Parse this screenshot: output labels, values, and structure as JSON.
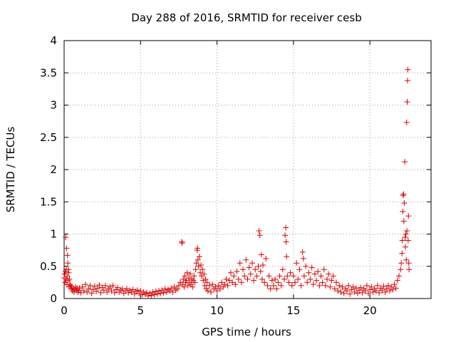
{
  "chart_data": {
    "type": "scatter",
    "title": "Day 288 of 2016, SRMTID for receiver cesb",
    "xlabel": "GPS time / hours",
    "ylabel": "SRMTID / TECUs",
    "xlim": [
      0,
      24
    ],
    "ylim": [
      0,
      4
    ],
    "xticks": [
      0,
      5,
      10,
      15,
      20
    ],
    "xtick_labels": [
      "0",
      "5",
      "10",
      "15",
      "20"
    ],
    "yticks": [
      0,
      0.5,
      1,
      1.5,
      2,
      2.5,
      3,
      3.5,
      4
    ],
    "ytick_labels": [
      "0",
      "0.5",
      "1",
      "1.5",
      "2",
      "2.5",
      "3",
      "3.5",
      "4"
    ],
    "grid": true,
    "marker": "+",
    "series": [
      {
        "name": "SRMTID",
        "color": "#dd0000",
        "points": [
          [
            0.0,
            0.32
          ],
          [
            0.04,
            0.38
          ],
          [
            0.06,
            0.25
          ],
          [
            0.08,
            0.42
          ],
          [
            0.1,
            0.95
          ],
          [
            0.12,
            0.3
          ],
          [
            0.14,
            0.45
          ],
          [
            0.16,
            0.78
          ],
          [
            0.18,
            0.22
          ],
          [
            0.2,
            0.35
          ],
          [
            0.22,
            0.67
          ],
          [
            0.24,
            0.55
          ],
          [
            0.26,
            0.28
          ],
          [
            0.28,
            0.45
          ],
          [
            0.3,
            0.4
          ],
          [
            0.32,
            0.18
          ],
          [
            0.35,
            0.3
          ],
          [
            0.38,
            0.22
          ],
          [
            0.42,
            0.2
          ],
          [
            0.46,
            0.15
          ],
          [
            0.5,
            0.18
          ],
          [
            0.55,
            0.12
          ],
          [
            0.6,
            0.16
          ],
          [
            0.65,
            0.1
          ],
          [
            0.7,
            0.14
          ],
          [
            0.75,
            0.18
          ],
          [
            0.8,
            0.12
          ],
          [
            0.85,
            0.16
          ],
          [
            0.9,
            0.1
          ],
          [
            0.95,
            0.13
          ],
          [
            1.0,
            0.16
          ],
          [
            1.1,
            0.09
          ],
          [
            1.2,
            0.18
          ],
          [
            1.3,
            0.12
          ],
          [
            1.4,
            0.22
          ],
          [
            1.5,
            0.1
          ],
          [
            1.6,
            0.15
          ],
          [
            1.7,
            0.2
          ],
          [
            1.8,
            0.08
          ],
          [
            1.9,
            0.14
          ],
          [
            2.0,
            0.19
          ],
          [
            2.1,
            0.11
          ],
          [
            2.2,
            0.16
          ],
          [
            2.3,
            0.21
          ],
          [
            2.4,
            0.09
          ],
          [
            2.5,
            0.17
          ],
          [
            2.6,
            0.13
          ],
          [
            2.7,
            0.2
          ],
          [
            2.8,
            0.1
          ],
          [
            2.9,
            0.15
          ],
          [
            3.0,
            0.18
          ],
          [
            3.1,
            0.12
          ],
          [
            3.2,
            0.2
          ],
          [
            3.3,
            0.09
          ],
          [
            3.4,
            0.14
          ],
          [
            3.5,
            0.17
          ],
          [
            3.6,
            0.1
          ],
          [
            3.7,
            0.13
          ],
          [
            3.8,
            0.15
          ],
          [
            3.9,
            0.08
          ],
          [
            4.0,
            0.12
          ],
          [
            4.1,
            0.15
          ],
          [
            4.2,
            0.09
          ],
          [
            4.3,
            0.13
          ],
          [
            4.4,
            0.1
          ],
          [
            4.5,
            0.14
          ],
          [
            4.6,
            0.07
          ],
          [
            4.7,
            0.11
          ],
          [
            4.8,
            0.13
          ],
          [
            4.9,
            0.08
          ],
          [
            5.0,
            0.12
          ],
          [
            5.1,
            0.06
          ],
          [
            5.2,
            0.1
          ],
          [
            5.3,
            0.07
          ],
          [
            5.4,
            0.09
          ],
          [
            5.5,
            0.04
          ],
          [
            5.6,
            0.08
          ],
          [
            5.7,
            0.05
          ],
          [
            5.8,
            0.1
          ],
          [
            5.9,
            0.06
          ],
          [
            6.0,
            0.11
          ],
          [
            6.1,
            0.07
          ],
          [
            6.2,
            0.12
          ],
          [
            6.3,
            0.08
          ],
          [
            6.4,
            0.13
          ],
          [
            6.5,
            0.09
          ],
          [
            6.6,
            0.15
          ],
          [
            6.7,
            0.1
          ],
          [
            6.8,
            0.14
          ],
          [
            6.9,
            0.12
          ],
          [
            7.0,
            0.16
          ],
          [
            7.1,
            0.1
          ],
          [
            7.2,
            0.18
          ],
          [
            7.3,
            0.13
          ],
          [
            7.4,
            0.15
          ],
          [
            7.5,
            0.2
          ],
          [
            7.6,
            0.25
          ],
          [
            7.7,
            0.88
          ],
          [
            7.72,
            0.86
          ],
          [
            7.75,
            0.22
          ],
          [
            7.8,
            0.3
          ],
          [
            7.85,
            0.18
          ],
          [
            7.9,
            0.35
          ],
          [
            7.95,
            0.25
          ],
          [
            8.0,
            0.28
          ],
          [
            8.05,
            0.4
          ],
          [
            8.1,
            0.2
          ],
          [
            8.15,
            0.32
          ],
          [
            8.2,
            0.25
          ],
          [
            8.25,
            0.38
          ],
          [
            8.3,
            0.22
          ],
          [
            8.35,
            0.3
          ],
          [
            8.4,
            0.18
          ],
          [
            8.45,
            0.28
          ],
          [
            8.5,
            0.35
          ],
          [
            8.55,
            0.25
          ],
          [
            8.6,
            0.45
          ],
          [
            8.65,
            0.55
          ],
          [
            8.7,
            0.75
          ],
          [
            8.72,
            0.78
          ],
          [
            8.75,
            0.6
          ],
          [
            8.8,
            0.5
          ],
          [
            8.85,
            0.65
          ],
          [
            8.9,
            0.4
          ],
          [
            8.95,
            0.52
          ],
          [
            9.0,
            0.35
          ],
          [
            9.05,
            0.45
          ],
          [
            9.1,
            0.28
          ],
          [
            9.15,
            0.38
          ],
          [
            9.2,
            0.2
          ],
          [
            9.25,
            0.3
          ],
          [
            9.3,
            0.15
          ],
          [
            9.35,
            0.25
          ],
          [
            9.4,
            0.12
          ],
          [
            9.5,
            0.2
          ],
          [
            9.6,
            0.1
          ],
          [
            9.7,
            0.22
          ],
          [
            9.8,
            0.15
          ],
          [
            9.9,
            0.18
          ],
          [
            10.0,
            0.12
          ],
          [
            10.1,
            0.2
          ],
          [
            10.2,
            0.15
          ],
          [
            10.3,
            0.25
          ],
          [
            10.4,
            0.18
          ],
          [
            10.5,
            0.22
          ],
          [
            10.6,
            0.3
          ],
          [
            10.7,
            0.2
          ],
          [
            10.8,
            0.28
          ],
          [
            10.9,
            0.4
          ],
          [
            11.0,
            0.25
          ],
          [
            11.1,
            0.35
          ],
          [
            11.2,
            0.22
          ],
          [
            11.3,
            0.42
          ],
          [
            11.4,
            0.3
          ],
          [
            11.5,
            0.55
          ],
          [
            11.6,
            0.25
          ],
          [
            11.7,
            0.45
          ],
          [
            11.8,
            0.35
          ],
          [
            11.9,
            0.6
          ],
          [
            12.0,
            0.3
          ],
          [
            12.1,
            0.48
          ],
          [
            12.2,
            0.38
          ],
          [
            12.3,
            0.55
          ],
          [
            12.4,
            0.28
          ],
          [
            12.5,
            0.45
          ],
          [
            12.6,
            0.35
          ],
          [
            12.7,
            0.5
          ],
          [
            12.75,
            1.05
          ],
          [
            12.8,
            0.98
          ],
          [
            12.85,
            0.42
          ],
          [
            12.9,
            0.68
          ],
          [
            12.95,
            0.3
          ],
          [
            13.0,
            0.52
          ],
          [
            13.1,
            0.25
          ],
          [
            13.2,
            0.62
          ],
          [
            13.3,
            0.2
          ],
          [
            13.4,
            0.35
          ],
          [
            13.5,
            0.15
          ],
          [
            13.6,
            0.28
          ],
          [
            13.7,
            0.2
          ],
          [
            13.8,
            0.3
          ],
          [
            13.9,
            0.15
          ],
          [
            14.0,
            0.25
          ],
          [
            14.1,
            0.35
          ],
          [
            14.2,
            0.2
          ],
          [
            14.3,
            0.45
          ],
          [
            14.4,
            0.3
          ],
          [
            14.45,
            0.98
          ],
          [
            14.5,
            1.1
          ],
          [
            14.52,
            0.88
          ],
          [
            14.55,
            0.65
          ],
          [
            14.6,
            0.35
          ],
          [
            14.7,
            0.25
          ],
          [
            14.8,
            0.4
          ],
          [
            14.9,
            0.2
          ],
          [
            15.0,
            0.35
          ],
          [
            15.1,
            0.25
          ],
          [
            15.2,
            0.55
          ],
          [
            15.3,
            0.3
          ],
          [
            15.4,
            0.45
          ],
          [
            15.5,
            0.2
          ],
          [
            15.6,
            0.72
          ],
          [
            15.65,
            0.62
          ],
          [
            15.7,
            0.35
          ],
          [
            15.8,
            0.5
          ],
          [
            15.9,
            0.25
          ],
          [
            16.0,
            0.4
          ],
          [
            16.1,
            0.3
          ],
          [
            16.2,
            0.48
          ],
          [
            16.3,
            0.22
          ],
          [
            16.4,
            0.38
          ],
          [
            16.5,
            0.28
          ],
          [
            16.6,
            0.42
          ],
          [
            16.7,
            0.2
          ],
          [
            16.8,
            0.35
          ],
          [
            16.9,
            0.25
          ],
          [
            17.0,
            0.45
          ],
          [
            17.1,
            0.2
          ],
          [
            17.2,
            0.3
          ],
          [
            17.3,
            0.38
          ],
          [
            17.4,
            0.18
          ],
          [
            17.5,
            0.28
          ],
          [
            17.6,
            0.35
          ],
          [
            17.7,
            0.15
          ],
          [
            17.8,
            0.25
          ],
          [
            17.9,
            0.12
          ],
          [
            18.0,
            0.2
          ],
          [
            18.1,
            0.1
          ],
          [
            18.2,
            0.18
          ],
          [
            18.3,
            0.08
          ],
          [
            18.4,
            0.15
          ],
          [
            18.5,
            0.12
          ],
          [
            18.6,
            0.2
          ],
          [
            18.7,
            0.07
          ],
          [
            18.8,
            0.14
          ],
          [
            18.9,
            0.18
          ],
          [
            19.0,
            0.1
          ],
          [
            19.1,
            0.16
          ],
          [
            19.2,
            0.08
          ],
          [
            19.3,
            0.13
          ],
          [
            19.4,
            0.17
          ],
          [
            19.5,
            0.09
          ],
          [
            19.6,
            0.15
          ],
          [
            19.7,
            0.12
          ],
          [
            19.8,
            0.2
          ],
          [
            19.9,
            0.08
          ],
          [
            20.0,
            0.14
          ],
          [
            20.1,
            0.18
          ],
          [
            20.2,
            0.1
          ],
          [
            20.3,
            0.15
          ],
          [
            20.4,
            0.12
          ],
          [
            20.5,
            0.2
          ],
          [
            20.6,
            0.09
          ],
          [
            20.7,
            0.16
          ],
          [
            20.8,
            0.13
          ],
          [
            20.9,
            0.19
          ],
          [
            21.0,
            0.1
          ],
          [
            21.1,
            0.15
          ],
          [
            21.2,
            0.2
          ],
          [
            21.3,
            0.12
          ],
          [
            21.4,
            0.18
          ],
          [
            21.5,
            0.14
          ],
          [
            21.6,
            0.22
          ],
          [
            21.7,
            0.16
          ],
          [
            21.8,
            0.28
          ],
          [
            21.9,
            0.35
          ],
          [
            22.0,
            0.45
          ],
          [
            22.05,
            0.55
          ],
          [
            22.1,
            0.7
          ],
          [
            22.12,
            0.9
          ],
          [
            22.15,
            1.35
          ],
          [
            22.17,
            1.6
          ],
          [
            22.2,
            1.62
          ],
          [
            22.22,
            1.2
          ],
          [
            22.25,
            1.48
          ],
          [
            22.28,
            2.12
          ],
          [
            22.3,
            0.95
          ],
          [
            22.32,
            0.8
          ],
          [
            22.35,
            1.0
          ],
          [
            22.38,
            0.6
          ],
          [
            22.4,
            2.73
          ],
          [
            22.42,
            1.05
          ],
          [
            22.44,
            3.05
          ],
          [
            22.46,
            3.38
          ],
          [
            22.48,
            3.55
          ],
          [
            22.5,
            0.9
          ],
          [
            22.52,
            1.28
          ],
          [
            22.54,
            0.55
          ],
          [
            22.56,
            0.45
          ]
        ]
      }
    ]
  }
}
